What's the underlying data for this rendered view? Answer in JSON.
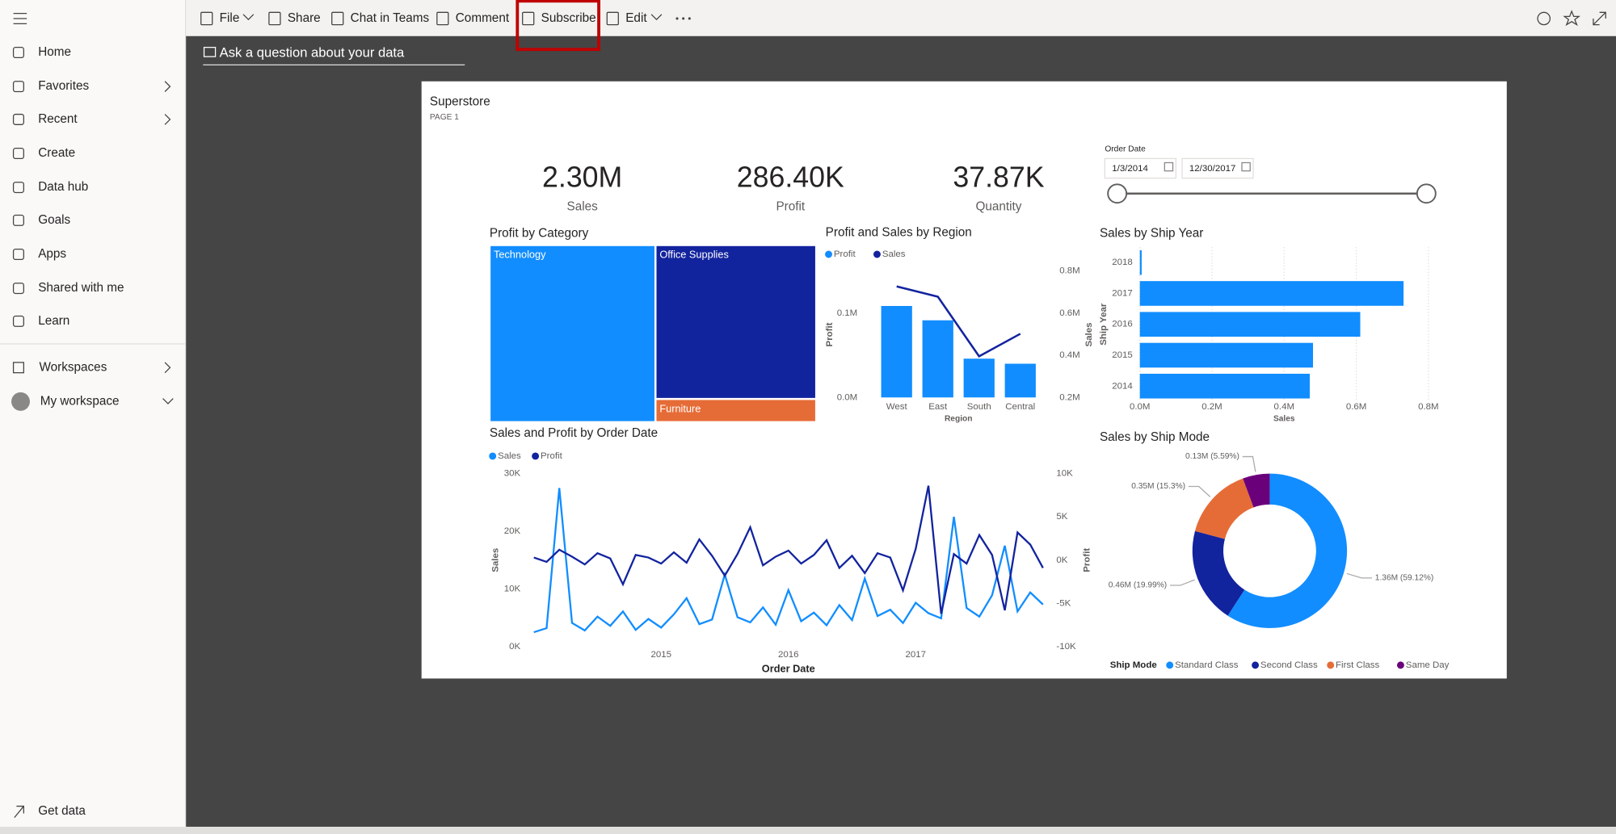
{
  "nav": {
    "items": [
      "Home",
      "Favorites",
      "Recent",
      "Create",
      "Data hub",
      "Goals",
      "Apps",
      "Shared with me",
      "Learn"
    ],
    "workspaces": "Workspaces",
    "my_workspace": "My workspace",
    "get_data": "Get data"
  },
  "toolbar": {
    "items": [
      "File",
      "Share",
      "Chat in Teams",
      "Comment",
      "Subscribe",
      "Edit"
    ]
  },
  "qna_placeholder": "Ask a question about your data",
  "report": {
    "title": "Superstore",
    "page": "PAGE 1",
    "cards": [
      {
        "value": "2.30M",
        "label": "Sales"
      },
      {
        "value": "286.40K",
        "label": "Profit"
      },
      {
        "value": "37.87K",
        "label": "Quantity"
      }
    ],
    "slicer": {
      "title": "Order Date",
      "start": "1/3/2014",
      "end": "12/30/2017"
    }
  },
  "chart_data": [
    {
      "type": "treemap",
      "title": "Profit by Category",
      "categories": [
        "Technology",
        "Office Supplies",
        "Furniture"
      ],
      "values": [
        145454,
        122491,
        18451
      ],
      "colors": [
        "#118DFF",
        "#12239E",
        "#E66C37"
      ]
    },
    {
      "type": "combo",
      "title": "Profit and Sales by Region",
      "categories": [
        "West",
        "East",
        "South",
        "Central"
      ],
      "xlabel": "Region",
      "ylabel": "Profit",
      "y2label": "Sales",
      "series": [
        {
          "name": "Profit",
          "color": "#118DFF",
          "values": [
            108500,
            91500,
            46000,
            40000
          ]
        },
        {
          "name": "Sales",
          "color": "#12239E",
          "axis": "y2",
          "values": [
            727000,
            678000,
            395000,
            502000
          ]
        }
      ],
      "ylim": [
        0,
        160000
      ],
      "yticks": [
        {
          "value": 0,
          "label": "0.0M"
        },
        {
          "value": 100000,
          "label": "0.1M"
        }
      ],
      "y2lim": [
        200000,
        840000
      ],
      "y2ticks": [
        {
          "value": 200000,
          "label": "0.2M"
        },
        {
          "value": 400000,
          "label": "0.4M"
        },
        {
          "value": 600000,
          "label": "0.6M"
        },
        {
          "value": 800000,
          "label": "0.8M"
        }
      ]
    },
    {
      "type": "hbar",
      "title": "Sales by Ship Year",
      "categories": [
        "2018",
        "2017",
        "2016",
        "2015",
        "2014"
      ],
      "values": [
        5000,
        731000,
        611000,
        480000,
        471000
      ],
      "color": "#118DFF",
      "xlabel": "Sales",
      "ylabel": "Ship Year",
      "xlim": [
        0,
        800000
      ],
      "xticks": [
        {
          "value": 0,
          "label": "0.0M"
        },
        {
          "value": 200000,
          "label": "0.2M"
        },
        {
          "value": 400000,
          "label": "0.4M"
        },
        {
          "value": 600000,
          "label": "0.6M"
        },
        {
          "value": 800000,
          "label": "0.8M"
        }
      ],
      "grid": true
    },
    {
      "type": "line",
      "title": "Sales and Profit by Order Date",
      "xlabel": "Order Date",
      "ylabel": "Sales",
      "y2label": "Profit",
      "x": [
        2014.0,
        2014.1,
        2014.2,
        2014.3,
        2014.4,
        2014.5,
        2014.6,
        2014.7,
        2014.8,
        2014.9,
        2015.0,
        2015.1,
        2015.2,
        2015.3,
        2015.4,
        2015.5,
        2015.6,
        2015.7,
        2015.8,
        2015.9,
        2016.0,
        2016.1,
        2016.2,
        2016.3,
        2016.4,
        2016.5,
        2016.6,
        2016.7,
        2016.8,
        2016.9,
        2017.0,
        2017.1,
        2017.2,
        2017.3,
        2017.4,
        2017.5,
        2017.6,
        2017.7,
        2017.8,
        2017.9,
        2018.0
      ],
      "series": [
        {
          "name": "Sales",
          "color": "#118DFF",
          "values": [
            2500,
            3200,
            27500,
            4100,
            2800,
            5200,
            3600,
            6100,
            2900,
            4800,
            3300,
            5600,
            8400,
            3900,
            4700,
            12500,
            5100,
            4200,
            6800,
            3800,
            9800,
            4400,
            5900,
            3700,
            7200,
            4600,
            11800,
            5300,
            6400,
            4100,
            7600,
            5800,
            4900,
            22500,
            6700,
            5200,
            8900,
            17500,
            6100,
            9400,
            7300
          ]
        },
        {
          "name": "Profit",
          "color": "#12239E",
          "axis": "y2",
          "values": [
            300,
            -200,
            1200,
            400,
            -500,
            800,
            200,
            -2800,
            600,
            300,
            -400,
            900,
            -300,
            2400,
            500,
            -1800,
            700,
            3800,
            -600,
            400,
            1100,
            -400,
            600,
            2300,
            -900,
            500,
            -1500,
            800,
            300,
            -3500,
            1300,
            8600,
            -6200,
            700,
            -400,
            2900,
            600,
            -5800,
            3200,
            1800,
            -900
          ]
        }
      ],
      "xlim": [
        2014,
        2018
      ],
      "xticks": [
        2015,
        2016,
        2017
      ],
      "ylim": [
        0,
        30000
      ],
      "yticks": [
        {
          "value": 0,
          "label": "0K"
        },
        {
          "value": 10000,
          "label": "10K"
        },
        {
          "value": 20000,
          "label": "20K"
        },
        {
          "value": 30000,
          "label": "30K"
        }
      ],
      "y2lim": [
        -10000,
        10000
      ],
      "y2ticks": [
        {
          "value": -10000,
          "label": "-10K"
        },
        {
          "value": -5000,
          "label": "-5K"
        },
        {
          "value": 0,
          "label": "0K"
        },
        {
          "value": 5000,
          "label": "5K"
        },
        {
          "value": 10000,
          "label": "10K"
        }
      ]
    },
    {
      "type": "donut",
      "title": "Sales by Ship Mode",
      "legend_title": "Ship Mode",
      "categories": [
        "Standard Class",
        "Second Class",
        "First Class",
        "Same Day"
      ],
      "values": [
        1360000,
        460000,
        350000,
        130000
      ],
      "value_labels": [
        "1.36M (59.12%)",
        "0.46M (19.99%)",
        "0.35M (15.3%)",
        "0.13M (5.59%)"
      ],
      "colors": [
        "#118DFF",
        "#12239E",
        "#E66C37",
        "#6B007B"
      ]
    }
  ]
}
